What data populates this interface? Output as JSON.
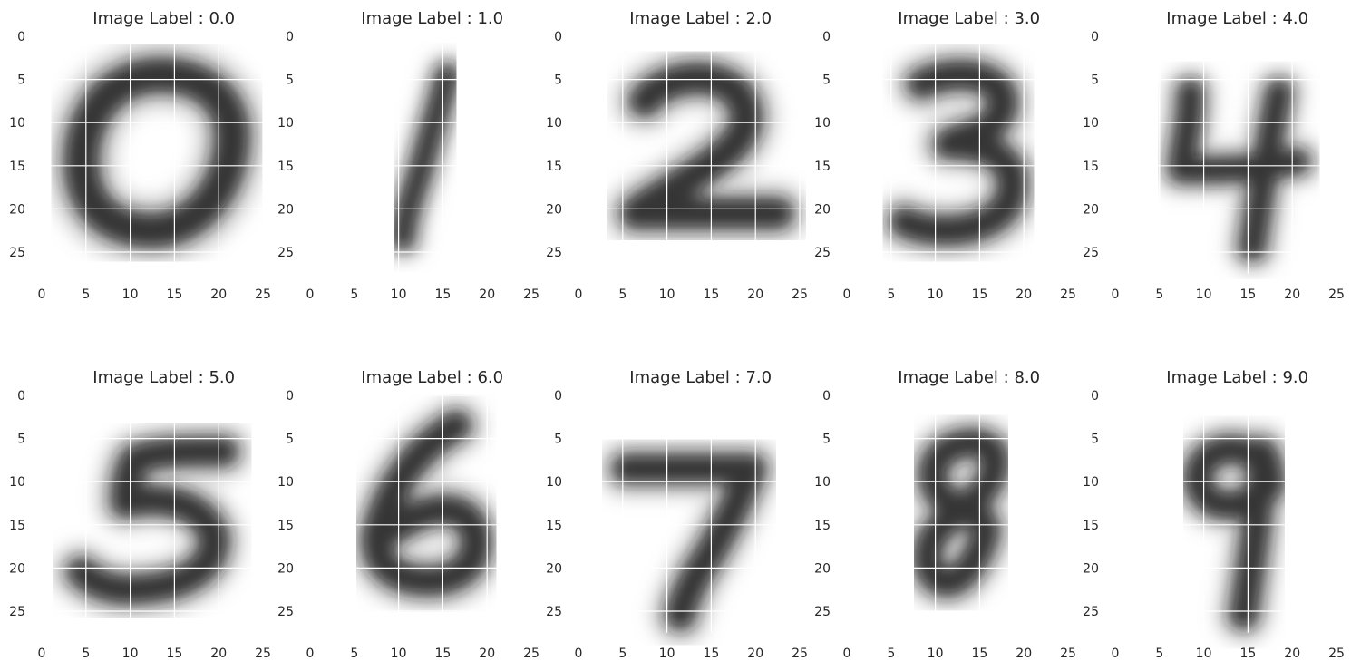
{
  "colors": {
    "background": "#ffffff",
    "grid": "#ffffff",
    "text": "#262626",
    "tick_text": "#444444",
    "colormap": "gray_r"
  },
  "chart_data": [
    {
      "type": "heatmap",
      "title": "Image Label : 0.0",
      "digit": "0",
      "xticks": [
        0,
        5,
        10,
        15,
        20,
        25
      ],
      "yticks": [
        0,
        5,
        10,
        15,
        20,
        25
      ],
      "xlim": [
        0,
        28
      ],
      "ylim": [
        28,
        0
      ],
      "grid": true,
      "cmap": "gray_r"
    },
    {
      "type": "heatmap",
      "title": "Image Label : 1.0",
      "digit": "1",
      "xticks": [
        0,
        5,
        10,
        15,
        20,
        25
      ],
      "yticks": [
        0,
        5,
        10,
        15,
        20,
        25
      ],
      "xlim": [
        0,
        28
      ],
      "ylim": [
        28,
        0
      ],
      "grid": true,
      "cmap": "gray_r"
    },
    {
      "type": "heatmap",
      "title": "Image Label : 2.0",
      "digit": "2",
      "xticks": [
        0,
        5,
        10,
        15,
        20,
        25
      ],
      "yticks": [
        0,
        5,
        10,
        15,
        20,
        25
      ],
      "xlim": [
        0,
        28
      ],
      "ylim": [
        28,
        0
      ],
      "grid": true,
      "cmap": "gray_r"
    },
    {
      "type": "heatmap",
      "title": "Image Label : 3.0",
      "digit": "3",
      "xticks": [
        0,
        5,
        10,
        15,
        20,
        25
      ],
      "yticks": [
        0,
        5,
        10,
        15,
        20,
        25
      ],
      "xlim": [
        0,
        28
      ],
      "ylim": [
        28,
        0
      ],
      "grid": true,
      "cmap": "gray_r"
    },
    {
      "type": "heatmap",
      "title": "Image Label : 4.0",
      "digit": "4",
      "xticks": [
        0,
        5,
        10,
        15,
        20,
        25
      ],
      "yticks": [
        0,
        5,
        10,
        15,
        20,
        25
      ],
      "xlim": [
        0,
        28
      ],
      "ylim": [
        28,
        0
      ],
      "grid": true,
      "cmap": "gray_r"
    },
    {
      "type": "heatmap",
      "title": "Image Label : 5.0",
      "digit": "5",
      "xticks": [
        0,
        5,
        10,
        15,
        20,
        25
      ],
      "yticks": [
        0,
        5,
        10,
        15,
        20,
        25
      ],
      "xlim": [
        0,
        28
      ],
      "ylim": [
        28,
        0
      ],
      "grid": true,
      "cmap": "gray_r"
    },
    {
      "type": "heatmap",
      "title": "Image Label : 6.0",
      "digit": "6",
      "xticks": [
        0,
        5,
        10,
        15,
        20,
        25
      ],
      "yticks": [
        0,
        5,
        10,
        15,
        20,
        25
      ],
      "xlim": [
        0,
        28
      ],
      "ylim": [
        28,
        0
      ],
      "grid": true,
      "cmap": "gray_r"
    },
    {
      "type": "heatmap",
      "title": "Image Label : 7.0",
      "digit": "7",
      "xticks": [
        0,
        5,
        10,
        15,
        20,
        25
      ],
      "yticks": [
        0,
        5,
        10,
        15,
        20,
        25
      ],
      "xlim": [
        0,
        28
      ],
      "ylim": [
        28,
        0
      ],
      "grid": true,
      "cmap": "gray_r"
    },
    {
      "type": "heatmap",
      "title": "Image Label : 8.0",
      "digit": "8",
      "xticks": [
        0,
        5,
        10,
        15,
        20,
        25
      ],
      "yticks": [
        0,
        5,
        10,
        15,
        20,
        25
      ],
      "xlim": [
        0,
        28
      ],
      "ylim": [
        28,
        0
      ],
      "grid": true,
      "cmap": "gray_r"
    },
    {
      "type": "heatmap",
      "title": "Image Label : 9.0",
      "digit": "9",
      "xticks": [
        0,
        5,
        10,
        15,
        20,
        25
      ],
      "yticks": [
        0,
        5,
        10,
        15,
        20,
        25
      ],
      "xlim": [
        0,
        28
      ],
      "ylim": [
        28,
        0
      ],
      "grid": true,
      "cmap": "gray_r"
    }
  ]
}
